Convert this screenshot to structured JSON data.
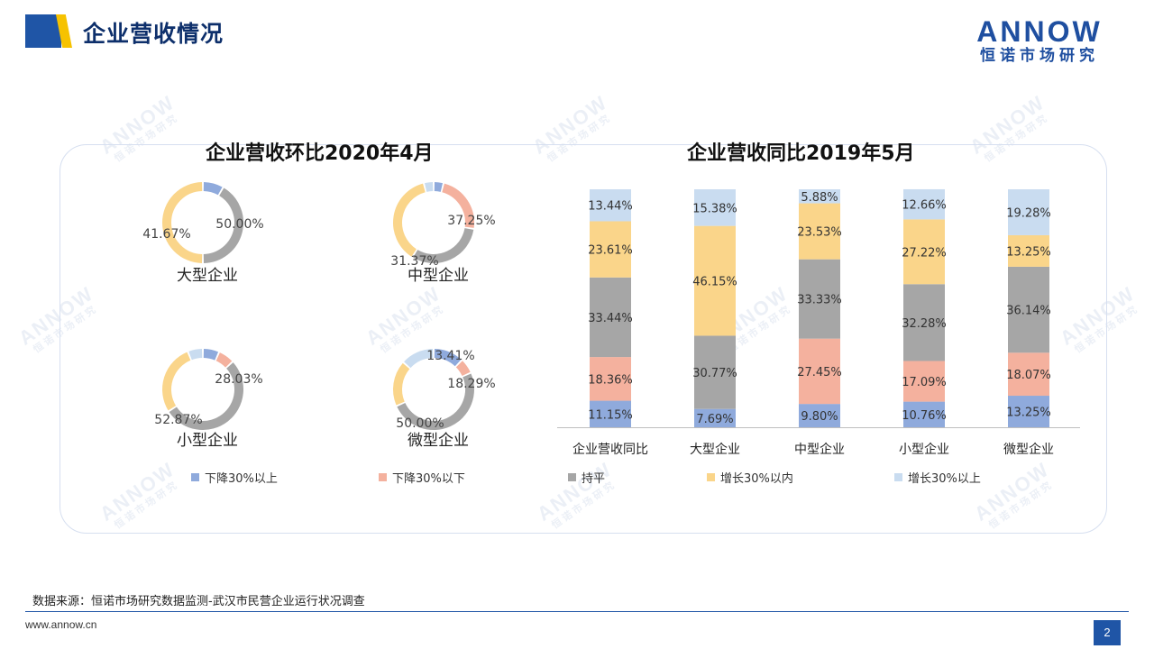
{
  "header": {
    "title": "企业营收情况"
  },
  "logo": {
    "word": "ANNOW",
    "sub": "恒诺市场研究"
  },
  "colors": {
    "down_over_30": "#8faadc",
    "down_within_30": "#f4b19e",
    "flat": "#a6a6a6",
    "up_within_30": "#fad58a",
    "up_over_30": "#c9dcf0",
    "brand": "#1f55a6",
    "accent": "#f6c200"
  },
  "legend": [
    "下降30%以上",
    "下降30%以下",
    "持平",
    "增长30%以内",
    "增长30%以上"
  ],
  "chart_data": [
    {
      "type": "pie",
      "title": "企业营收环比2020年4月",
      "series_names": [
        "下降30%以上",
        "下降30%以下",
        "持平",
        "增长30%以内",
        "增长30%以上"
      ],
      "charts": [
        {
          "label": "大型企业",
          "values": [
            8.33,
            0,
            41.67,
            50.0,
            0
          ],
          "shown_labels": [
            "41.67%",
            "50.00%"
          ]
        },
        {
          "label": "中型企业",
          "values": [
            3.92,
            23.53,
            31.37,
            37.25,
            3.92
          ],
          "shown_labels": [
            "31.37%",
            "37.25%"
          ]
        },
        {
          "label": "小型企业",
          "values": [
            6.54,
            6.54,
            52.87,
            28.03,
            6.02
          ],
          "shown_labels": [
            "52.87%",
            "28.03%"
          ]
        },
        {
          "label": "微型企业",
          "values": [
            12.2,
            6.1,
            50.0,
            18.29,
            13.41
          ],
          "shown_labels": [
            "50.00%",
            "18.29%",
            "13.41%"
          ]
        }
      ]
    },
    {
      "type": "bar",
      "stacked": true,
      "title": "企业营收同比2019年5月",
      "categories": [
        "企业营收同比",
        "大型企业",
        "中型企业",
        "小型企业",
        "微型企业"
      ],
      "series": [
        {
          "name": "下降30%以上",
          "values": [
            11.15,
            7.69,
            9.8,
            10.76,
            13.25
          ],
          "labels": [
            "11.15%",
            "7.69%",
            "9.80%",
            "10.76%",
            "13.25%"
          ]
        },
        {
          "name": "下降30%以下",
          "values": [
            18.36,
            0,
            27.45,
            17.09,
            18.07
          ],
          "labels": [
            "18.36%",
            "",
            "27.45%",
            "17.09%",
            "18.07%"
          ]
        },
        {
          "name": "持平",
          "values": [
            33.44,
            30.77,
            33.33,
            32.28,
            36.14
          ],
          "labels": [
            "33.44%",
            "30.77%",
            "33.33%",
            "32.28%",
            "36.14%"
          ]
        },
        {
          "name": "增长30%以内",
          "values": [
            23.61,
            46.15,
            23.53,
            27.22,
            13.25
          ],
          "labels": [
            "23.61%",
            "46.15%",
            "23.53%",
            "27.22%",
            "13.25%"
          ]
        },
        {
          "name": "增长30%以上",
          "values": [
            13.44,
            15.38,
            5.88,
            12.66,
            19.28
          ],
          "labels": [
            "13.44%",
            "15.38%",
            "5.88%",
            "12.66%",
            "19.28%"
          ]
        }
      ],
      "ylim": [
        0,
        100
      ]
    }
  ],
  "footer": {
    "source": "数据来源：恒诺市场研究数据监测-武汉市民营企业运行状况调查",
    "site": "www.annow.cn",
    "page": "2"
  }
}
